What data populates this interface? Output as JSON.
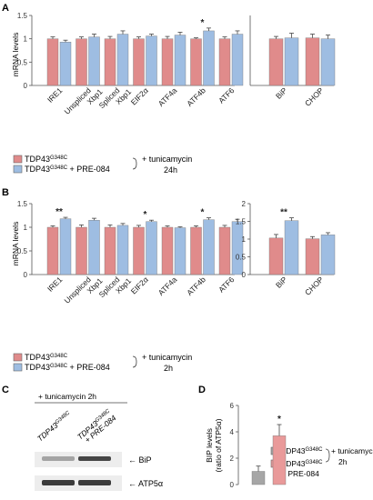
{
  "figure": {
    "colors": {
      "control": "#e08b8b",
      "treated": "#9ebde2",
      "gray": "#a6a6a6",
      "pink": "#e99a9a",
      "axis": "#555555",
      "error": "#444444"
    }
  },
  "panels": [
    {
      "id": "A",
      "label": "A",
      "ylabel": "mRNA levels",
      "treatment": "+ tunicamycin",
      "duration": "24h",
      "legend": [
        {
          "base": "TDP43",
          "sup": "G348C",
          "suffix": ""
        },
        {
          "base": "TDP43",
          "sup": "G348C",
          "suffix": " + PRE-084"
        }
      ]
    },
    {
      "id": "B",
      "label": "B",
      "ylabel": "mRNA levels",
      "treatment": "+ tunicamycin",
      "duration": "2h",
      "legend": [
        {
          "base": "TDP43",
          "sup": "G348C",
          "suffix": ""
        },
        {
          "base": "TDP43",
          "sup": "G348C",
          "suffix": " + PRE-084"
        }
      ]
    },
    {
      "id": "C",
      "label": "C",
      "header": "+ tunicamycin 2h",
      "lane_labels": [
        {
          "base": "TDP43",
          "sup": "G348C",
          "line2": ""
        },
        {
          "base": "TDP43",
          "sup": "G348C",
          "line2": "+ PRE-084"
        }
      ],
      "bands": [
        {
          "name": "BiP",
          "intensity": [
            0.35,
            0.85
          ]
        },
        {
          "name": "ATP5α",
          "intensity": [
            0.9,
            0.9
          ]
        }
      ]
    },
    {
      "id": "D",
      "label": "D",
      "ylabel_line1": "BIP levels",
      "ylabel_line2": "(ratio of ATP5α)",
      "treatment": "+ tunicamycin",
      "duration": "2h",
      "legend": [
        {
          "base": "TDP43",
          "sup": "G348C",
          "line2": ""
        },
        {
          "base": "TDP43",
          "sup": "G348C",
          "line2": "+ PRE-084"
        }
      ]
    }
  ],
  "chart_data": [
    {
      "panel": "A-left",
      "type": "bar",
      "categories": [
        "IRE1",
        "Unspliced Xbp1",
        "Spliced Xbp1",
        "EIF2α",
        "ATF4a",
        "ATF4b",
        "ATF6"
      ],
      "tick_labels": [
        [
          "IRE1"
        ],
        [
          "Unspliced",
          "Xbp1"
        ],
        [
          "Spliced",
          "Xbp1"
        ],
        [
          "EIF2α"
        ],
        [
          "ATF4a"
        ],
        [
          "ATF4b"
        ],
        [
          "ATF6"
        ]
      ],
      "ylim": [
        0,
        1.5
      ],
      "yticks": [
        "0",
        "0.5",
        "1",
        "1.5"
      ],
      "series": [
        {
          "key": "control",
          "values": [
            1.0,
            1.0,
            1.0,
            1.0,
            1.0,
            1.0,
            1.0
          ],
          "errors": [
            0.04,
            0.04,
            0.05,
            0.04,
            0.05,
            0.02,
            0.04
          ]
        },
        {
          "key": "treated",
          "values": [
            0.93,
            1.04,
            1.1,
            1.06,
            1.08,
            1.17,
            1.1
          ],
          "errors": [
            0.04,
            0.06,
            0.07,
            0.04,
            0.06,
            0.06,
            0.07
          ]
        }
      ],
      "significance": [
        {
          "index": 5,
          "label": "*"
        }
      ]
    },
    {
      "panel": "A-right",
      "type": "bar",
      "categories": [
        "BiP",
        "CHOP"
      ],
      "tick_labels": [
        [
          "BiP"
        ],
        [
          "CHOP"
        ]
      ],
      "ylim": [
        0,
        1.5
      ],
      "yticks": [],
      "series": [
        {
          "key": "control",
          "values": [
            1.0,
            1.02
          ],
          "errors": [
            0.05,
            0.08
          ]
        },
        {
          "key": "treated",
          "values": [
            1.02,
            1.0
          ],
          "errors": [
            0.1,
            0.08
          ]
        }
      ],
      "significance": []
    },
    {
      "panel": "B-left",
      "type": "bar",
      "categories": [
        "IRE1",
        "Unspliced Xbp1",
        "Spliced Xbp1",
        "EIF2α",
        "ATF4a",
        "ATF4b",
        "ATF6"
      ],
      "tick_labels": [
        [
          "IRE1"
        ],
        [
          "Unspliced",
          "Xbp1"
        ],
        [
          "Spliced",
          "Xbp1"
        ],
        [
          "EIF2α"
        ],
        [
          "ATF4a"
        ],
        [
          "ATF4b"
        ],
        [
          "ATF6"
        ]
      ],
      "ylim": [
        0,
        1.5
      ],
      "yticks": [
        "0",
        "0.5",
        "1",
        "1.5"
      ],
      "series": [
        {
          "key": "control",
          "values": [
            1.0,
            1.0,
            1.0,
            1.0,
            1.0,
            1.0,
            1.0
          ],
          "errors": [
            0.03,
            0.05,
            0.05,
            0.04,
            0.03,
            0.03,
            0.04
          ]
        },
        {
          "key": "treated",
          "values": [
            1.18,
            1.15,
            1.04,
            1.12,
            0.99,
            1.16,
            1.12
          ],
          "errors": [
            0.03,
            0.04,
            0.04,
            0.03,
            0.02,
            0.04,
            0.05
          ]
        }
      ],
      "significance": [
        {
          "index": 0,
          "label": "**"
        },
        {
          "index": 3,
          "label": "*"
        },
        {
          "index": 5,
          "label": "*"
        }
      ]
    },
    {
      "panel": "B-right",
      "type": "bar",
      "categories": [
        "BiP",
        "CHOP"
      ],
      "tick_labels": [
        [
          "BiP"
        ],
        [
          "CHOP"
        ]
      ],
      "ylim": [
        0,
        2
      ],
      "yticks": [
        "0",
        "0.5",
        "1",
        "1.5",
        "2"
      ],
      "series": [
        {
          "key": "control",
          "values": [
            1.03,
            1.01
          ],
          "errors": [
            0.1,
            0.06
          ]
        },
        {
          "key": "treated",
          "values": [
            1.52,
            1.12
          ],
          "errors": [
            0.08,
            0.06
          ]
        }
      ],
      "significance": [
        {
          "index": 0,
          "label": "**"
        }
      ]
    },
    {
      "panel": "D",
      "type": "bar",
      "categories": [
        "TDP43G348C",
        "TDP43G348C + PRE-084"
      ],
      "ylim": [
        0,
        6
      ],
      "yticks": [
        "0",
        "2",
        "4",
        "6"
      ],
      "series": [
        {
          "key": "bip",
          "values": [
            1.0,
            3.7
          ],
          "errors": [
            0.4,
            0.85
          ]
        }
      ],
      "significance": [
        {
          "index": 1,
          "label": "*"
        }
      ]
    }
  ]
}
